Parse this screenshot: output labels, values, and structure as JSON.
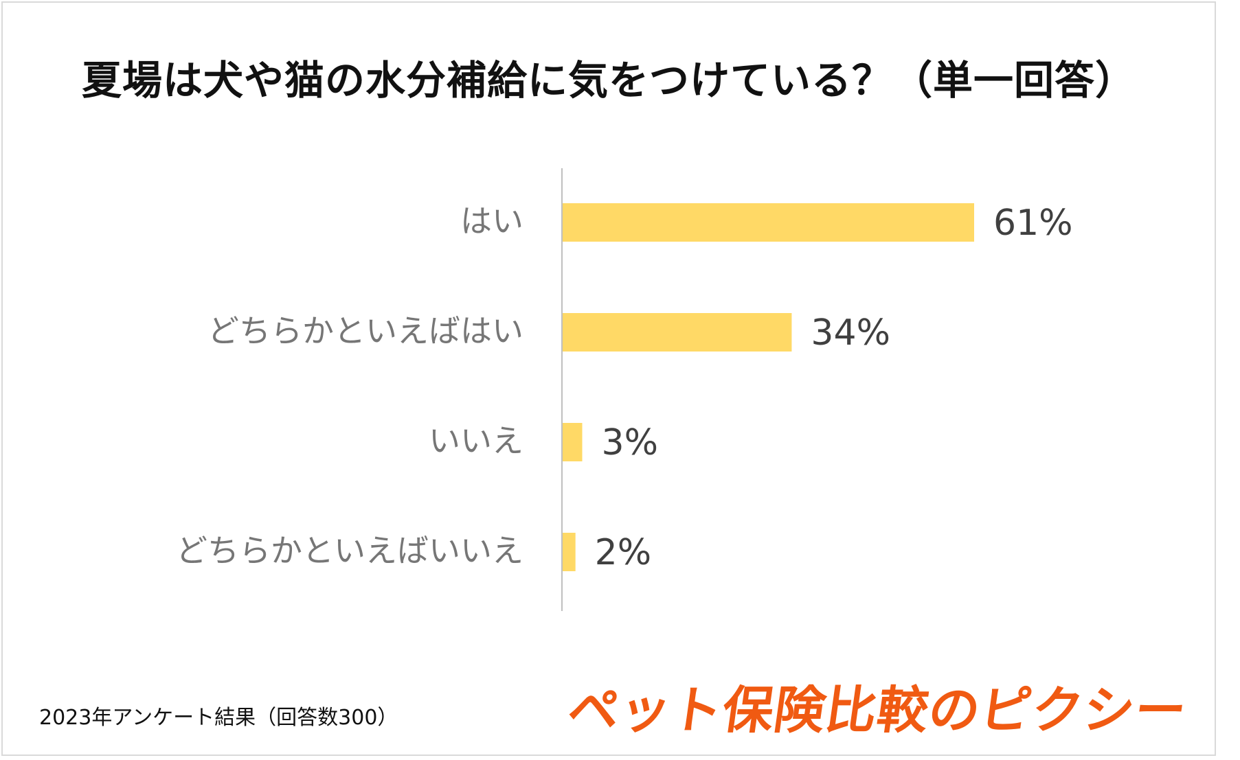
{
  "header": {
    "title": "夏場は犬や猫の水分補給に気をつけている？（単一回答）"
  },
  "chart_data": {
    "type": "bar",
    "orientation": "horizontal",
    "categories": [
      "はい",
      "どちらかといえばはい",
      "いいえ",
      "どちらかといえばいいえ"
    ],
    "values": [
      61,
      34,
      3,
      2
    ],
    "data_labels": [
      "61%",
      "34%",
      "3%",
      "2%"
    ],
    "unit": "%",
    "xlim": [
      0,
      100
    ],
    "grid": false,
    "legend": "none",
    "bar_color": "#FFD966",
    "label_color": "#767676",
    "value_label_color": "#404040",
    "axis_color": "#bfbfbf"
  },
  "footer": {
    "note": "2023年アンケート結果（回答数300）",
    "logo": "ペット保険比較のピクシー",
    "logo_color": "#f05a12"
  }
}
